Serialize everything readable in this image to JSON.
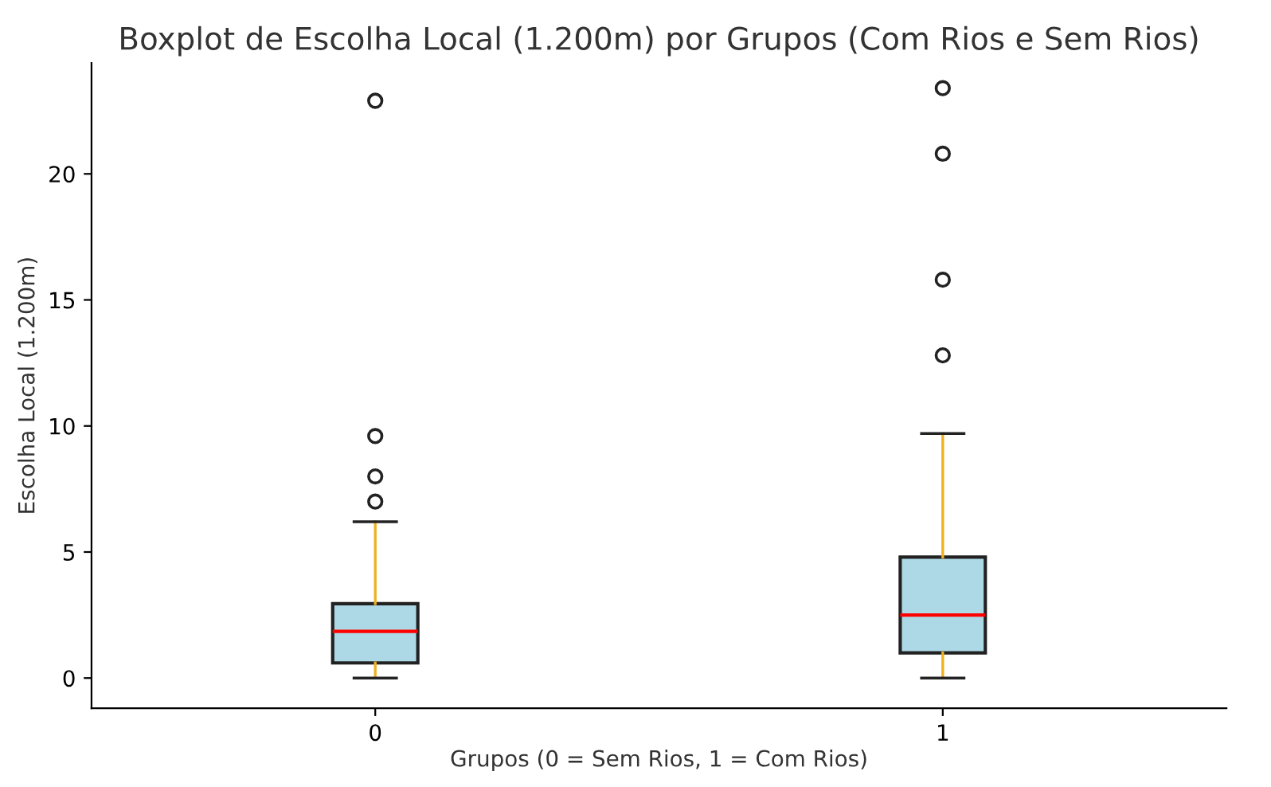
{
  "chart_data": {
    "type": "box",
    "title": "Boxplot de Escolha Local (1.200m) por Grupos (Com Rios e Sem Rios)",
    "xlabel": "Grupos (0 = Sem Rios, 1 = Com Rios)",
    "ylabel": "Escolha Local (1.200m)",
    "categories": [
      "0",
      "1"
    ],
    "boxes": [
      {
        "low": 0,
        "q1": 0.6,
        "median": 1.85,
        "q3": 2.95,
        "high": 6.2,
        "outliers": [
          7.0,
          8.0,
          9.6,
          22.9
        ]
      },
      {
        "low": 0,
        "q1": 1.0,
        "median": 2.5,
        "q3": 4.8,
        "high": 9.7,
        "outliers": [
          12.8,
          15.8,
          20.8,
          23.4
        ]
      }
    ],
    "color": "#add8e6",
    "ylim": [
      -1.2,
      24.4
    ],
    "yticks": [
      0,
      5,
      10,
      15,
      20
    ],
    "grid": false,
    "legend": false
  }
}
